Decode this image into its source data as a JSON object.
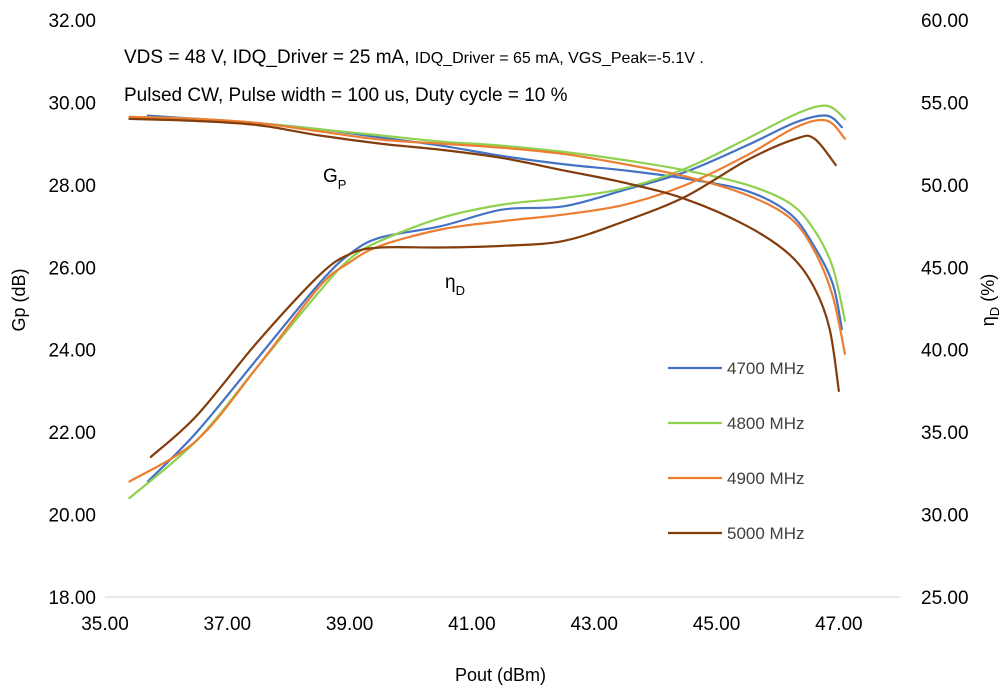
{
  "chart_data": {
    "type": "line",
    "xlabel": "Pout (dBm)",
    "ylabel_left": "Gp (dB)",
    "ylabel_right_main": "η",
    "ylabel_right_sub": "D",
    "ylabel_right_tail": " (%)",
    "xlim": [
      35.0,
      48.0
    ],
    "ylim_left": [
      18.0,
      32.0
    ],
    "ylim_right": [
      25.0,
      60.0
    ],
    "x_ticks": [
      "35.00",
      "37.00",
      "39.00",
      "41.00",
      "43.00",
      "45.00",
      "47.00"
    ],
    "y_left_ticks": [
      "18.00",
      "20.00",
      "22.00",
      "24.00",
      "26.00",
      "28.00",
      "30.00",
      "32.00"
    ],
    "y_right_ticks": [
      "25.00",
      "30.00",
      "35.00",
      "40.00",
      "45.00",
      "50.00",
      "55.00",
      "60.00"
    ],
    "annotation_line1_a": "VDS = 48 V, IDQ_Driver = 25 mA, ",
    "annotation_line1_b": "IDQ_Driver = 65 mA, VGS_Peak=-5.1V .",
    "annotation_line2": "Pulsed CW, Pulse width = 100 us, Duty cycle = 10 %",
    "label_gp_main": "G",
    "label_gp_sub": "P",
    "label_eta_main": "η",
    "label_eta_sub": "D",
    "legend_position": "right",
    "grid": false,
    "series": [
      {
        "name": "4700 MHz",
        "color": "#4472C4",
        "gain": {
          "x": [
            35.7,
            36.5,
            37.5,
            38.5,
            39.5,
            40.5,
            41.5,
            42.5,
            43.5,
            44.5,
            45.5,
            46.2,
            46.6,
            46.9,
            47.05
          ],
          "y": [
            29.68,
            29.6,
            29.5,
            29.35,
            29.15,
            28.95,
            28.7,
            28.5,
            28.35,
            28.15,
            27.85,
            27.3,
            26.5,
            25.6,
            24.5
          ]
        },
        "eff": {
          "x": [
            35.7,
            36.5,
            37.5,
            38.5,
            39.0,
            39.5,
            40.5,
            41.5,
            42.5,
            43.5,
            44.5,
            45.5,
            46.3,
            46.8,
            47.05
          ],
          "y": [
            32.0,
            35.0,
            39.5,
            44.0,
            45.8,
            46.8,
            47.5,
            48.5,
            48.7,
            49.7,
            50.8,
            52.4,
            53.8,
            54.2,
            53.5
          ]
        }
      },
      {
        "name": "4800 MHz",
        "color": "#8FD14F",
        "gain": {
          "x": [
            35.4,
            36.5,
            37.5,
            38.5,
            39.5,
            40.5,
            41.5,
            42.5,
            43.5,
            44.5,
            45.5,
            46.2,
            46.6,
            46.9,
            47.1
          ],
          "y": [
            29.65,
            29.6,
            29.5,
            29.35,
            29.2,
            29.05,
            28.95,
            28.8,
            28.6,
            28.35,
            28.0,
            27.55,
            26.9,
            26.0,
            24.7
          ]
        },
        "eff": {
          "x": [
            35.4,
            36.5,
            37.5,
            38.5,
            39.0,
            39.5,
            40.5,
            41.5,
            42.5,
            43.5,
            44.5,
            45.5,
            46.3,
            46.8,
            47.1
          ],
          "y": [
            31.0,
            34.5,
            39.0,
            43.5,
            45.5,
            46.6,
            48.0,
            48.8,
            49.2,
            49.8,
            51.0,
            52.8,
            54.3,
            54.8,
            54.0
          ]
        }
      },
      {
        "name": "4900 MHz",
        "color": "#ED7D31",
        "gain": {
          "x": [
            35.4,
            36.5,
            37.5,
            38.5,
            39.5,
            40.5,
            41.5,
            42.5,
            43.5,
            44.5,
            45.5,
            46.2,
            46.6,
            46.9,
            47.1
          ],
          "y": [
            29.65,
            29.6,
            29.5,
            29.3,
            29.1,
            29.0,
            28.9,
            28.75,
            28.5,
            28.2,
            27.75,
            27.2,
            26.4,
            25.3,
            23.9
          ]
        },
        "eff": {
          "x": [
            35.4,
            36.5,
            37.5,
            38.5,
            39.0,
            39.5,
            40.5,
            41.5,
            42.5,
            43.5,
            44.5,
            45.5,
            46.3,
            46.8,
            47.1
          ],
          "y": [
            32.0,
            34.5,
            39.0,
            43.8,
            45.3,
            46.3,
            47.3,
            47.8,
            48.2,
            48.8,
            50.0,
            51.8,
            53.5,
            53.9,
            52.8
          ]
        }
      },
      {
        "name": "5000 MHz",
        "color": "#833C0B",
        "gain": {
          "x": [
            35.4,
            36.5,
            37.5,
            38.5,
            39.5,
            40.5,
            41.5,
            42.5,
            43.5,
            44.5,
            45.5,
            46.2,
            46.6,
            46.85,
            47.0
          ],
          "y": [
            29.6,
            29.55,
            29.45,
            29.2,
            29.0,
            28.85,
            28.65,
            28.35,
            28.05,
            27.65,
            27.0,
            26.3,
            25.5,
            24.5,
            23.0
          ]
        },
        "eff": {
          "x": [
            35.75,
            36.5,
            37.5,
            38.5,
            39.0,
            39.5,
            40.5,
            41.5,
            42.5,
            43.5,
            44.5,
            45.5,
            46.3,
            46.6,
            46.95
          ],
          "y": [
            33.5,
            36.0,
            40.5,
            44.5,
            45.8,
            46.2,
            46.2,
            46.3,
            46.6,
            47.8,
            49.3,
            51.5,
            52.8,
            52.8,
            51.2
          ]
        }
      }
    ]
  }
}
